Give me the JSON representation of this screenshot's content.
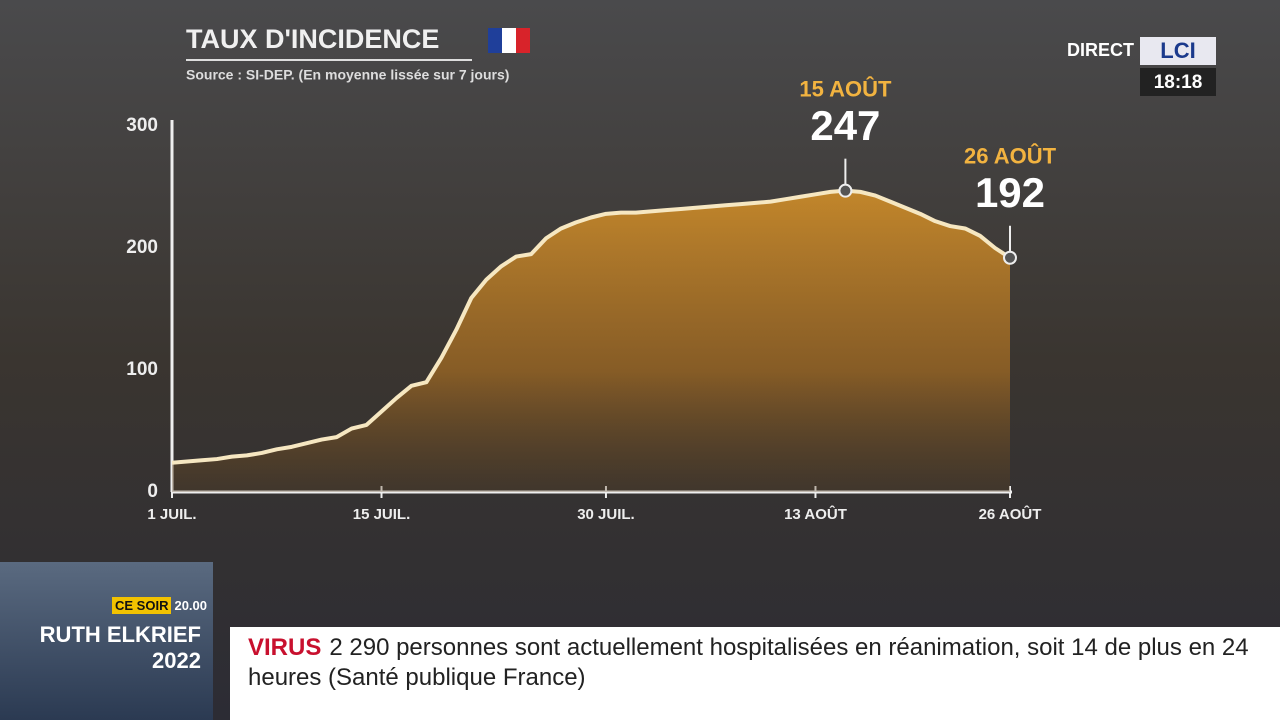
{
  "chart_data": {
    "type": "area",
    "title": "TAUX D'INCIDENCE",
    "subtitle": "Source : SI-DEP. (En moyenne lissée sur 7 jours)",
    "categories": [
      "1 JUIL.",
      null,
      null,
      null,
      null,
      null,
      null,
      null,
      null,
      null,
      null,
      null,
      null,
      null,
      "15 JUIL.",
      null,
      null,
      null,
      null,
      null,
      null,
      null,
      null,
      null,
      null,
      null,
      null,
      null,
      null,
      "30 JUIL.",
      null,
      null,
      null,
      null,
      null,
      null,
      null,
      null,
      null,
      null,
      null,
      null,
      null,
      "13 AOÛT",
      null,
      null,
      null,
      null,
      null,
      null,
      null,
      null,
      null,
      null,
      null,
      null,
      "26 AOÛT"
    ],
    "values": [
      24,
      25,
      26,
      27,
      29,
      30,
      32,
      35,
      37,
      40,
      43,
      45,
      52,
      55,
      66,
      77,
      87,
      90,
      110,
      133,
      159,
      174,
      185,
      193,
      195,
      208,
      216,
      221,
      225,
      228,
      229,
      229,
      230,
      231,
      232,
      233,
      234,
      235,
      236,
      237,
      238,
      240,
      242,
      244,
      246,
      247,
      246,
      243,
      238,
      233,
      228,
      222,
      218,
      216,
      210,
      200,
      192
    ],
    "color": "#f6e7c1",
    "ylim": [
      0,
      300
    ],
    "yticks": [
      0,
      100,
      200,
      300
    ],
    "annotations": [
      {
        "date": "15 AOÛT",
        "value": 247
      },
      {
        "date": "26 AOÛT",
        "value": 192
      }
    ]
  },
  "broadcast": {
    "live": "DIRECT",
    "channel": "LCI",
    "time": "18:18",
    "promo": {
      "when": "CE SOIR",
      "hour": "20.00",
      "show": "RUTH ELKRIEF",
      "year": "2022"
    },
    "ticker": {
      "tag": "VIRUS",
      "text": "2 290 personnes sont actuellement hospitalisées en réanimation, soit 14 de plus en 24 heures (Santé publique France)"
    }
  }
}
